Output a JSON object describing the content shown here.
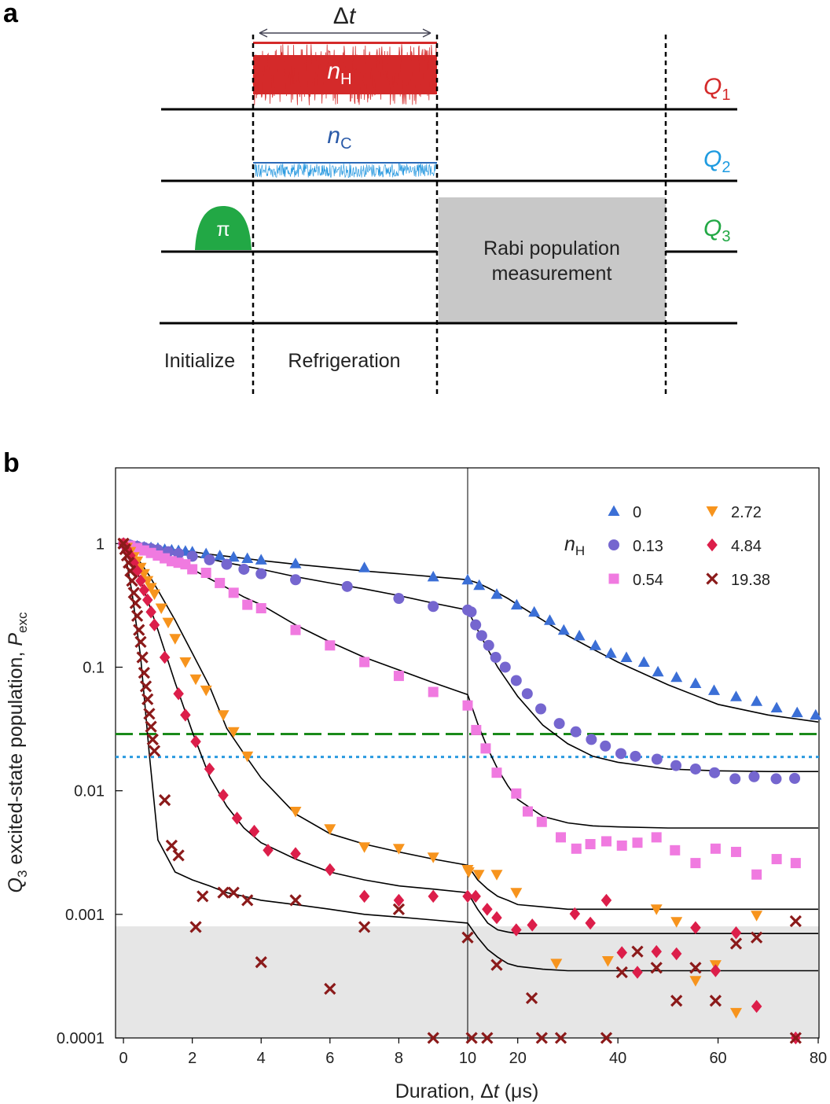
{
  "panel_a": {
    "label": "a",
    "duration": [
      "Δ",
      "t"
    ],
    "hot": [
      "n",
      "H"
    ],
    "cold": [
      "n",
      "C"
    ],
    "qubits": [
      [
        "Q",
        "1"
      ],
      [
        "Q",
        "2"
      ],
      [
        "Q",
        "3"
      ]
    ],
    "pulse": "π",
    "measurement": [
      "Rabi population",
      "measurement"
    ],
    "phases": [
      "Initialize",
      "Refrigeration"
    ]
  },
  "panel_b_label": "b",
  "chart_data": {
    "type": "scatter",
    "xlabel": [
      "Duration, Δ",
      "t",
      " (μs)"
    ],
    "ylabel": [
      "Q",
      "3",
      " excited-state population, ",
      "P",
      "exc"
    ],
    "legend_title": [
      "n",
      "H"
    ],
    "legend": "upper right",
    "xlim": [
      -0.23,
      10
    ],
    "xticks": [
      0,
      2,
      4,
      6,
      8,
      10
    ],
    "x2lim": [
      10,
      80
    ],
    "x2ticks": [
      20,
      40,
      60,
      80
    ],
    "yscale": "log",
    "ylim": [
      0.0001,
      4.1
    ],
    "yticks": [
      1,
      0.1,
      0.01,
      0.001,
      0.0001
    ],
    "shade_below": 0.0008,
    "hlines": [
      {
        "value": 0.0288,
        "color": "#1a8a1a",
        "style": "dashed"
      },
      {
        "value": 0.0188,
        "color": "#2a9ae0",
        "style": "dotted"
      }
    ],
    "series": [
      {
        "name": "0",
        "color": "#3b6fd6",
        "marker": "triangle-up",
        "x": [
          0,
          0.2,
          0.4,
          0.6,
          0.8,
          1,
          1.2,
          1.4,
          1.6,
          1.8,
          2,
          2.4,
          2.8,
          3.2,
          3.6,
          4,
          5,
          7,
          9,
          10,
          12.3,
          15.8,
          19.8,
          23.3,
          26.4,
          29.2,
          32.3,
          35.5,
          38.6,
          41.7,
          45.2,
          48,
          51.7,
          55.5,
          59.2,
          63.6,
          67.7,
          71.7,
          75.8,
          79.5
        ],
        "values": [
          1,
          0.98,
          0.96,
          0.94,
          0.93,
          0.92,
          0.9,
          0.89,
          0.88,
          0.87,
          0.86,
          0.83,
          0.8,
          0.78,
          0.76,
          0.74,
          0.69,
          0.64,
          0.54,
          0.51,
          0.46,
          0.39,
          0.32,
          0.28,
          0.24,
          0.2,
          0.18,
          0.15,
          0.13,
          0.12,
          0.11,
          0.092,
          0.083,
          0.074,
          0.065,
          0.058,
          0.053,
          0.047,
          0.043,
          0.041
        ]
      },
      {
        "name": "0.13",
        "color": "#7566cf",
        "marker": "circle",
        "x": [
          0,
          0.2,
          0.4,
          0.6,
          0.8,
          1,
          1.3,
          1.6,
          2,
          2.5,
          3,
          3.5,
          4,
          5,
          6.5,
          8,
          9,
          10,
          10.7,
          11.6,
          12.8,
          14.2,
          15.6,
          17.5,
          19.7,
          21.9,
          24.6,
          28.3,
          31.6,
          34.7,
          37.5,
          40.6,
          43.5,
          47.8,
          51.6,
          55.5,
          59.3,
          63.4,
          67.2,
          71.6,
          75.3
        ],
        "values": [
          1,
          0.97,
          0.95,
          0.93,
          0.91,
          0.89,
          0.86,
          0.83,
          0.79,
          0.74,
          0.68,
          0.62,
          0.57,
          0.51,
          0.45,
          0.36,
          0.31,
          0.29,
          0.28,
          0.22,
          0.18,
          0.15,
          0.12,
          0.1,
          0.078,
          0.061,
          0.046,
          0.035,
          0.03,
          0.026,
          0.023,
          0.02,
          0.019,
          0.018,
          0.016,
          0.015,
          0.014,
          0.0125,
          0.013,
          0.0125,
          0.0126
        ]
      },
      {
        "name": "0.54",
        "color": "#f07ae0",
        "marker": "square",
        "x": [
          0,
          0.2,
          0.4,
          0.6,
          0.8,
          1,
          1.2,
          1.4,
          1.6,
          1.8,
          2,
          2.4,
          2.8,
          3.2,
          3.6,
          4,
          5,
          6,
          7,
          8,
          9,
          10,
          11.7,
          13.6,
          15.8,
          19.7,
          22,
          24.8,
          28.6,
          31.7,
          34.5,
          37.7,
          40.8,
          43.9,
          47.7,
          51.4,
          55.5,
          59.5,
          63.6,
          67.7,
          71.7,
          75.5
        ],
        "values": [
          1,
          0.96,
          0.92,
          0.88,
          0.84,
          0.8,
          0.76,
          0.72,
          0.7,
          0.68,
          0.62,
          0.58,
          0.48,
          0.4,
          0.32,
          0.3,
          0.2,
          0.15,
          0.11,
          0.085,
          0.063,
          0.049,
          0.031,
          0.022,
          0.014,
          0.0095,
          0.0068,
          0.0056,
          0.0042,
          0.0034,
          0.0037,
          0.0039,
          0.0036,
          0.0038,
          0.0042,
          0.0033,
          0.0026,
          0.0034,
          0.0032,
          0.0021,
          0.0028,
          0.0026
        ]
      },
      {
        "name": "2.72",
        "color": "#f7941d",
        "marker": "triangle-down",
        "x": [
          0,
          0.1,
          0.2,
          0.3,
          0.4,
          0.5,
          0.6,
          0.7,
          0.8,
          0.9,
          1.1,
          1.3,
          1.5,
          1.8,
          2.1,
          2.4,
          2.9,
          3.2,
          3.6,
          5,
          6,
          7,
          8,
          9,
          10,
          10.2,
          12.2,
          15.8,
          19.7,
          27.7,
          38,
          47.7,
          51.7,
          55.5,
          59.5,
          63.6,
          67.7
        ],
        "values": [
          1,
          0.93,
          0.86,
          0.78,
          0.72,
          0.64,
          0.57,
          0.5,
          0.44,
          0.39,
          0.3,
          0.23,
          0.17,
          0.11,
          0.08,
          0.065,
          0.041,
          0.03,
          0.019,
          0.0068,
          0.0049,
          0.0035,
          0.0034,
          0.0029,
          0.0023,
          0.0022,
          0.0021,
          0.0021,
          0.0015,
          0.0004,
          0.00042,
          0.0011,
          0.00087,
          0.00029,
          0.00039,
          0.00016,
          0.00098
        ]
      },
      {
        "name": "4.84",
        "color": "#dc1e4a",
        "marker": "diamond",
        "x": [
          0,
          0.1,
          0.2,
          0.3,
          0.4,
          0.5,
          0.6,
          0.7,
          0.8,
          0.9,
          1.2,
          1.6,
          1.8,
          2.1,
          2.5,
          2.9,
          3.3,
          3.8,
          4.2,
          5,
          6,
          7,
          8,
          9,
          10,
          11.6,
          13.9,
          15.8,
          19.7,
          22.9,
          31.4,
          34.5,
          37.7,
          40.8,
          43.9,
          47.7,
          51.7,
          55.5,
          59.5,
          63.6,
          67.7,
          75.5
        ],
        "values": [
          1,
          0.9,
          0.8,
          0.7,
          0.6,
          0.5,
          0.42,
          0.35,
          0.28,
          0.22,
          0.12,
          0.061,
          0.041,
          0.025,
          0.015,
          0.0092,
          0.006,
          0.0047,
          0.0033,
          0.0031,
          0.0023,
          0.0014,
          0.0013,
          0.0014,
          0.0014,
          0.0014,
          0.0011,
          0.00094,
          0.00075,
          0.00082,
          0.00101,
          0.00085,
          0.0013,
          0.00049,
          0.00034,
          0.0005,
          0.00048,
          0.00078,
          0.00035,
          0.00071,
          0.00018,
          0.0001
        ]
      },
      {
        "name": "19.38",
        "color": "#8b1a1a",
        "marker": "cross",
        "x": [
          0,
          0.05,
          0.1,
          0.15,
          0.2,
          0.25,
          0.3,
          0.35,
          0.4,
          0.45,
          0.5,
          0.55,
          0.6,
          0.65,
          0.7,
          0.75,
          0.8,
          0.85,
          0.9,
          1.2,
          1.4,
          1.6,
          2.3,
          2.1,
          2.9,
          3.2,
          3.6,
          4,
          5,
          6,
          7,
          8,
          9,
          10,
          10.8,
          13.9,
          15.8,
          22.8,
          24.8,
          28.6,
          37.7,
          40.8,
          43.9,
          47.7,
          51.7,
          55.5,
          59.5,
          63.6,
          67.7,
          75.5,
          75.5
        ],
        "values": [
          1,
          0.9,
          0.8,
          0.7,
          0.6,
          0.5,
          0.4,
          0.33,
          0.26,
          0.2,
          0.16,
          0.12,
          0.09,
          0.07,
          0.055,
          0.042,
          0.033,
          0.026,
          0.021,
          0.0084,
          0.0036,
          0.003,
          0.0014,
          0.00079,
          0.0015,
          0.0015,
          0.0013,
          0.00041,
          0.0013,
          0.00025,
          0.00079,
          0.0011,
          0.0001,
          0.00065,
          0.0001,
          0.0001,
          0.00039,
          0.00021,
          0.0001,
          0.0001,
          0.0001,
          0.00034,
          0.0005,
          0.00037,
          0.0002,
          0.00037,
          0.0002,
          0.00058,
          0.00065,
          0.00088,
          0.0001
        ]
      }
    ],
    "fits": {
      "color": "#000000",
      "x": [
        0,
        0.25,
        0.5,
        0.75,
        1,
        1.5,
        2,
        2.5,
        3,
        3.5,
        4,
        5,
        6,
        7,
        8,
        9,
        10,
        12,
        14,
        16,
        18,
        20,
        25,
        30,
        35,
        40,
        50,
        60,
        70,
        80
      ],
      "series": [
        {
          "values": [
            1,
            0.99,
            0.97,
            0.95,
            0.93,
            0.89,
            0.86,
            0.82,
            0.79,
            0.76,
            0.73,
            0.68,
            0.64,
            0.6,
            0.57,
            0.54,
            0.51,
            0.48,
            0.44,
            0.4,
            0.36,
            0.32,
            0.24,
            0.18,
            0.14,
            0.11,
            0.072,
            0.05,
            0.041,
            0.036
          ]
        },
        {
          "values": [
            1,
            0.98,
            0.96,
            0.93,
            0.9,
            0.85,
            0.8,
            0.75,
            0.7,
            0.66,
            0.62,
            0.54,
            0.48,
            0.43,
            0.38,
            0.33,
            0.29,
            0.2,
            0.14,
            0.1,
            0.076,
            0.058,
            0.034,
            0.024,
            0.019,
            0.017,
            0.015,
            0.0145,
            0.0143,
            0.0143
          ]
        },
        {
          "values": [
            1,
            0.96,
            0.92,
            0.87,
            0.82,
            0.72,
            0.62,
            0.52,
            0.44,
            0.37,
            0.32,
            0.22,
            0.16,
            0.12,
            0.095,
            0.075,
            0.06,
            0.035,
            0.022,
            0.015,
            0.011,
            0.0085,
            0.0062,
            0.0055,
            0.0052,
            0.0051,
            0.005,
            0.005,
            0.005,
            0.005
          ]
        },
        {
          "values": [
            1,
            0.85,
            0.7,
            0.55,
            0.42,
            0.24,
            0.13,
            0.07,
            0.032,
            0.02,
            0.0127,
            0.0065,
            0.0045,
            0.0037,
            0.0032,
            0.0028,
            0.0025,
            0.0019,
            0.0016,
            0.0014,
            0.0013,
            0.0012,
            0.00115,
            0.0011,
            0.0011,
            0.0011,
            0.0011,
            0.0011,
            0.0011,
            0.0011
          ]
        },
        {
          "values": [
            1,
            0.75,
            0.5,
            0.32,
            0.2,
            0.075,
            0.03,
            0.013,
            0.0075,
            0.005,
            0.0038,
            0.0028,
            0.0022,
            0.0019,
            0.0017,
            0.0016,
            0.0015,
            0.0011,
            0.00085,
            0.00075,
            0.00072,
            0.0007,
            0.0007,
            0.0007,
            0.0007,
            0.0007,
            0.0007,
            0.0007,
            0.0007,
            0.0007
          ]
        },
        {
          "values": [
            1,
            0.4,
            0.12,
            0.02,
            0.004,
            0.0022,
            0.0019,
            0.0017,
            0.0015,
            0.0014,
            0.0013,
            0.0012,
            0.0011,
            0.001,
            0.00095,
            0.0009,
            0.00085,
            0.00065,
            0.00052,
            0.00045,
            0.0004,
            0.00038,
            0.00036,
            0.00035,
            0.00035,
            0.00035,
            0.00035,
            0.00035,
            0.00035,
            0.00035
          ]
        }
      ]
    }
  }
}
